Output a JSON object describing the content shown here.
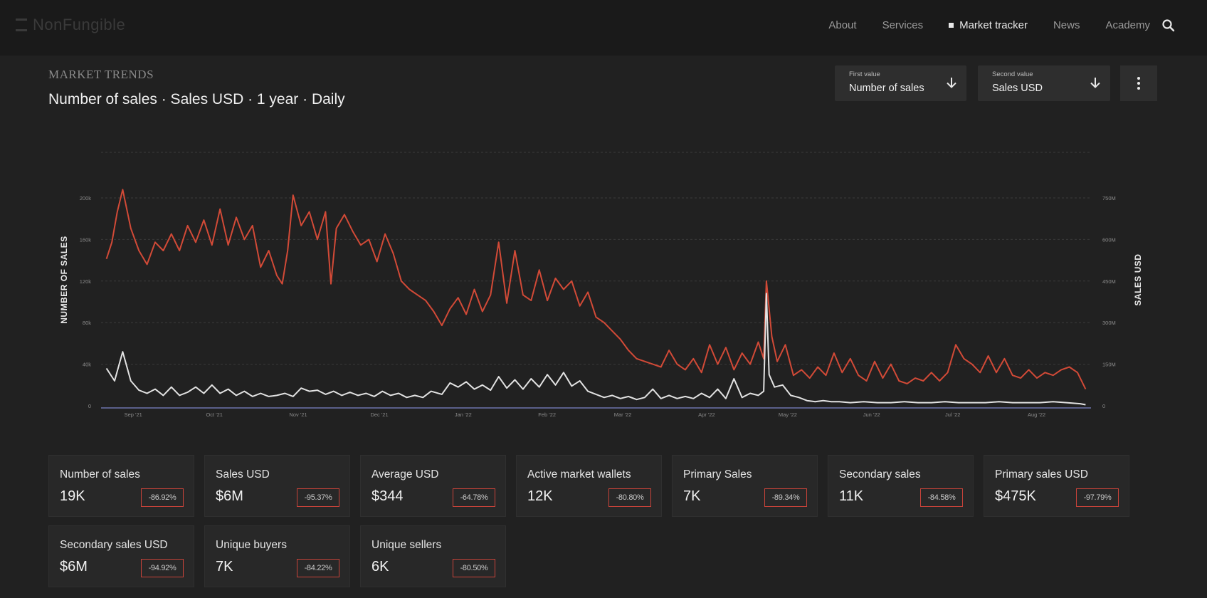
{
  "header": {
    "logo_text": "NonFungible",
    "nav": [
      {
        "label": "About",
        "active": false
      },
      {
        "label": "Services",
        "active": false
      },
      {
        "label": "Market tracker",
        "active": true
      },
      {
        "label": "News",
        "active": false
      },
      {
        "label": "Academy",
        "active": false
      }
    ],
    "search_icon": "search-icon"
  },
  "section_label": "MARKET TRENDS",
  "title": "Number of sales · Sales USD · 1 year · Daily",
  "selectors": {
    "first": {
      "caption": "First value",
      "value": "Number of sales"
    },
    "second": {
      "caption": "Second value",
      "value": "Sales USD"
    },
    "more_icon": "more-vertical-icon"
  },
  "colors": {
    "sales_usd_line": "#d24a37",
    "number_of_sales_line": "#e2e2e2",
    "baseline": "#5a5f8a",
    "change_border": "#c9433a"
  },
  "chart_data": {
    "type": "line",
    "ylabel": "NUMBER OF SALES",
    "y2label": "SALES USD",
    "x_ticks": [
      "Sep '21",
      "Oct '21",
      "Nov '21",
      "Dec '21",
      "Jan '22",
      "Feb '22",
      "Mar '22",
      "Apr '22",
      "May '22",
      "Jun '22",
      "Jul '22",
      "Aug '22"
    ],
    "y_ticks": [
      "0",
      "40k",
      "80k",
      "120k",
      "160k",
      "200k"
    ],
    "y2_ticks": [
      "0",
      "150M",
      "300M",
      "450M",
      "600M",
      "750M"
    ],
    "ylim": [
      0,
      200000
    ],
    "y2lim": [
      0,
      750000000
    ],
    "grid": true,
    "series": [
      {
        "axis": "right",
        "color": "#d24a37",
        "points": [
          [
            "2021-08-30",
            530000000
          ],
          [
            "2021-09-01",
            590000000
          ],
          [
            "2021-09-03",
            700000000
          ],
          [
            "2021-09-05",
            780000000
          ],
          [
            "2021-09-08",
            640000000
          ],
          [
            "2021-09-11",
            560000000
          ],
          [
            "2021-09-14",
            510000000
          ],
          [
            "2021-09-17",
            590000000
          ],
          [
            "2021-09-20",
            560000000
          ],
          [
            "2021-09-23",
            620000000
          ],
          [
            "2021-09-26",
            560000000
          ],
          [
            "2021-09-29",
            650000000
          ],
          [
            "2021-10-02",
            590000000
          ],
          [
            "2021-10-05",
            670000000
          ],
          [
            "2021-10-08",
            580000000
          ],
          [
            "2021-10-11",
            710000000
          ],
          [
            "2021-10-14",
            580000000
          ],
          [
            "2021-10-17",
            680000000
          ],
          [
            "2021-10-20",
            600000000
          ],
          [
            "2021-10-23",
            650000000
          ],
          [
            "2021-10-26",
            500000000
          ],
          [
            "2021-10-29",
            560000000
          ],
          [
            "2021-11-01",
            470000000
          ],
          [
            "2021-11-03",
            440000000
          ],
          [
            "2021-11-05",
            560000000
          ],
          [
            "2021-11-07",
            760000000
          ],
          [
            "2021-11-10",
            650000000
          ],
          [
            "2021-11-13",
            700000000
          ],
          [
            "2021-11-16",
            600000000
          ],
          [
            "2021-11-19",
            700000000
          ],
          [
            "2021-11-21",
            440000000
          ],
          [
            "2021-11-23",
            640000000
          ],
          [
            "2021-11-26",
            690000000
          ],
          [
            "2021-11-29",
            630000000
          ],
          [
            "2021-12-02",
            580000000
          ],
          [
            "2021-12-05",
            600000000
          ],
          [
            "2021-12-08",
            520000000
          ],
          [
            "2021-12-11",
            620000000
          ],
          [
            "2021-12-14",
            550000000
          ],
          [
            "2021-12-17",
            450000000
          ],
          [
            "2021-12-20",
            420000000
          ],
          [
            "2021-12-23",
            400000000
          ],
          [
            "2021-12-26",
            380000000
          ],
          [
            "2021-12-29",
            340000000
          ],
          [
            "2022-01-01",
            290000000
          ],
          [
            "2022-01-04",
            350000000
          ],
          [
            "2022-01-07",
            390000000
          ],
          [
            "2022-01-10",
            330000000
          ],
          [
            "2022-01-13",
            420000000
          ],
          [
            "2022-01-16",
            340000000
          ],
          [
            "2022-01-19",
            400000000
          ],
          [
            "2022-01-22",
            590000000
          ],
          [
            "2022-01-25",
            370000000
          ],
          [
            "2022-01-28",
            560000000
          ],
          [
            "2022-01-31",
            400000000
          ],
          [
            "2022-02-03",
            380000000
          ],
          [
            "2022-02-06",
            490000000
          ],
          [
            "2022-02-09",
            380000000
          ],
          [
            "2022-02-12",
            460000000
          ],
          [
            "2022-02-15",
            420000000
          ],
          [
            "2022-02-18",
            450000000
          ],
          [
            "2022-02-21",
            360000000
          ],
          [
            "2022-02-24",
            410000000
          ],
          [
            "2022-02-27",
            320000000
          ],
          [
            "2022-03-02",
            300000000
          ],
          [
            "2022-03-05",
            270000000
          ],
          [
            "2022-03-08",
            240000000
          ],
          [
            "2022-03-11",
            200000000
          ],
          [
            "2022-03-14",
            170000000
          ],
          [
            "2022-03-17",
            160000000
          ],
          [
            "2022-03-20",
            150000000
          ],
          [
            "2022-03-23",
            140000000
          ],
          [
            "2022-03-26",
            200000000
          ],
          [
            "2022-03-29",
            150000000
          ],
          [
            "2022-04-01",
            130000000
          ],
          [
            "2022-04-04",
            170000000
          ],
          [
            "2022-04-07",
            120000000
          ],
          [
            "2022-04-10",
            220000000
          ],
          [
            "2022-04-13",
            150000000
          ],
          [
            "2022-04-16",
            210000000
          ],
          [
            "2022-04-19",
            130000000
          ],
          [
            "2022-04-22",
            190000000
          ],
          [
            "2022-04-25",
            150000000
          ],
          [
            "2022-04-28",
            230000000
          ],
          [
            "2022-04-30",
            170000000
          ],
          [
            "2022-05-01",
            450000000
          ],
          [
            "2022-05-03",
            250000000
          ],
          [
            "2022-05-05",
            160000000
          ],
          [
            "2022-05-08",
            220000000
          ],
          [
            "2022-05-11",
            110000000
          ],
          [
            "2022-05-14",
            130000000
          ],
          [
            "2022-05-17",
            100000000
          ],
          [
            "2022-05-20",
            140000000
          ],
          [
            "2022-05-23",
            110000000
          ],
          [
            "2022-05-26",
            190000000
          ],
          [
            "2022-05-29",
            120000000
          ],
          [
            "2022-06-01",
            170000000
          ],
          [
            "2022-06-04",
            110000000
          ],
          [
            "2022-06-07",
            90000000
          ],
          [
            "2022-06-10",
            160000000
          ],
          [
            "2022-06-13",
            100000000
          ],
          [
            "2022-06-16",
            150000000
          ],
          [
            "2022-06-19",
            90000000
          ],
          [
            "2022-06-22",
            80000000
          ],
          [
            "2022-06-25",
            100000000
          ],
          [
            "2022-06-28",
            90000000
          ],
          [
            "2022-07-01",
            120000000
          ],
          [
            "2022-07-04",
            90000000
          ],
          [
            "2022-07-07",
            120000000
          ],
          [
            "2022-07-10",
            220000000
          ],
          [
            "2022-07-13",
            170000000
          ],
          [
            "2022-07-16",
            150000000
          ],
          [
            "2022-07-19",
            120000000
          ],
          [
            "2022-07-22",
            180000000
          ],
          [
            "2022-07-25",
            120000000
          ],
          [
            "2022-07-28",
            170000000
          ],
          [
            "2022-07-31",
            110000000
          ],
          [
            "2022-08-03",
            100000000
          ],
          [
            "2022-08-06",
            130000000
          ],
          [
            "2022-08-09",
            100000000
          ],
          [
            "2022-08-12",
            120000000
          ],
          [
            "2022-08-15",
            110000000
          ],
          [
            "2022-08-18",
            130000000
          ],
          [
            "2022-08-21",
            140000000
          ],
          [
            "2022-08-24",
            120000000
          ],
          [
            "2022-08-27",
            60000000
          ]
        ]
      },
      {
        "axis": "left",
        "color": "#e2e2e2",
        "points": [
          [
            "2021-08-30",
            36000
          ],
          [
            "2021-09-02",
            24000
          ],
          [
            "2021-09-05",
            52000
          ],
          [
            "2021-09-08",
            24000
          ],
          [
            "2021-09-11",
            15000
          ],
          [
            "2021-09-14",
            12000
          ],
          [
            "2021-09-17",
            16000
          ],
          [
            "2021-09-20",
            10000
          ],
          [
            "2021-09-23",
            18000
          ],
          [
            "2021-09-26",
            10000
          ],
          [
            "2021-09-29",
            13000
          ],
          [
            "2021-10-02",
            18000
          ],
          [
            "2021-10-05",
            12000
          ],
          [
            "2021-10-08",
            20000
          ],
          [
            "2021-10-11",
            12000
          ],
          [
            "2021-10-14",
            16000
          ],
          [
            "2021-10-17",
            10000
          ],
          [
            "2021-10-20",
            14000
          ],
          [
            "2021-10-23",
            9000
          ],
          [
            "2021-10-26",
            12000
          ],
          [
            "2021-10-29",
            9000
          ],
          [
            "2021-11-01",
            10000
          ],
          [
            "2021-11-04",
            12000
          ],
          [
            "2021-11-07",
            9000
          ],
          [
            "2021-11-10",
            17000
          ],
          [
            "2021-11-13",
            14000
          ],
          [
            "2021-11-16",
            15000
          ],
          [
            "2021-11-19",
            11000
          ],
          [
            "2021-11-22",
            14000
          ],
          [
            "2021-11-25",
            10000
          ],
          [
            "2021-11-28",
            13000
          ],
          [
            "2021-12-01",
            10000
          ],
          [
            "2021-12-04",
            12000
          ],
          [
            "2021-12-07",
            9000
          ],
          [
            "2021-12-10",
            14000
          ],
          [
            "2021-12-13",
            10000
          ],
          [
            "2021-12-16",
            12000
          ],
          [
            "2021-12-19",
            8000
          ],
          [
            "2021-12-22",
            10000
          ],
          [
            "2021-12-25",
            8000
          ],
          [
            "2021-12-28",
            14000
          ],
          [
            "2022-01-01",
            11000
          ],
          [
            "2022-01-04",
            22000
          ],
          [
            "2022-01-07",
            18000
          ],
          [
            "2022-01-10",
            23000
          ],
          [
            "2022-01-13",
            16000
          ],
          [
            "2022-01-16",
            20000
          ],
          [
            "2022-01-19",
            15000
          ],
          [
            "2022-01-22",
            28000
          ],
          [
            "2022-01-25",
            17000
          ],
          [
            "2022-01-28",
            25000
          ],
          [
            "2022-01-31",
            16000
          ],
          [
            "2022-02-03",
            26000
          ],
          [
            "2022-02-06",
            18000
          ],
          [
            "2022-02-09",
            30000
          ],
          [
            "2022-02-12",
            20000
          ],
          [
            "2022-02-15",
            32000
          ],
          [
            "2022-02-18",
            19000
          ],
          [
            "2022-02-21",
            24000
          ],
          [
            "2022-02-24",
            14000
          ],
          [
            "2022-02-27",
            11000
          ],
          [
            "2022-03-02",
            8000
          ],
          [
            "2022-03-05",
            10000
          ],
          [
            "2022-03-08",
            7000
          ],
          [
            "2022-03-11",
            9000
          ],
          [
            "2022-03-14",
            6000
          ],
          [
            "2022-03-17",
            8000
          ],
          [
            "2022-03-20",
            16000
          ],
          [
            "2022-03-23",
            7000
          ],
          [
            "2022-03-26",
            10000
          ],
          [
            "2022-03-29",
            7000
          ],
          [
            "2022-04-01",
            9000
          ],
          [
            "2022-04-04",
            7000
          ],
          [
            "2022-04-07",
            12000
          ],
          [
            "2022-04-10",
            8000
          ],
          [
            "2022-04-13",
            16000
          ],
          [
            "2022-04-16",
            7000
          ],
          [
            "2022-04-19",
            26000
          ],
          [
            "2022-04-22",
            8000
          ],
          [
            "2022-04-25",
            12000
          ],
          [
            "2022-04-28",
            10000
          ],
          [
            "2022-04-30",
            14000
          ],
          [
            "2022-05-01",
            108000
          ],
          [
            "2022-05-02",
            30000
          ],
          [
            "2022-05-04",
            18000
          ],
          [
            "2022-05-07",
            20000
          ],
          [
            "2022-05-10",
            10000
          ],
          [
            "2022-05-13",
            8000
          ],
          [
            "2022-05-16",
            5000
          ],
          [
            "2022-05-19",
            4000
          ],
          [
            "2022-05-22",
            5000
          ],
          [
            "2022-05-25",
            4000
          ],
          [
            "2022-05-28",
            4000
          ],
          [
            "2022-06-01",
            3000
          ],
          [
            "2022-06-06",
            4000
          ],
          [
            "2022-06-11",
            3000
          ],
          [
            "2022-06-16",
            3000
          ],
          [
            "2022-06-21",
            4000
          ],
          [
            "2022-06-26",
            3000
          ],
          [
            "2022-07-01",
            3000
          ],
          [
            "2022-07-06",
            4000
          ],
          [
            "2022-07-11",
            3000
          ],
          [
            "2022-07-16",
            3000
          ],
          [
            "2022-07-21",
            3000
          ],
          [
            "2022-07-26",
            4000
          ],
          [
            "2022-07-31",
            3000
          ],
          [
            "2022-08-05",
            3000
          ],
          [
            "2022-08-10",
            3000
          ],
          [
            "2022-08-15",
            4000
          ],
          [
            "2022-08-20",
            3000
          ],
          [
            "2022-08-25",
            2000
          ],
          [
            "2022-08-27",
            1000
          ]
        ]
      }
    ]
  },
  "metrics": [
    {
      "label": "Number of sales",
      "value": "19K",
      "change": "-86.92%"
    },
    {
      "label": "Sales USD",
      "value": "$6M",
      "change": "-95.37%"
    },
    {
      "label": "Average USD",
      "value": "$344",
      "change": "-64.78%"
    },
    {
      "label": "Active market wallets",
      "value": "12K",
      "change": "-80.80%"
    },
    {
      "label": "Primary Sales",
      "value": "7K",
      "change": "-89.34%"
    },
    {
      "label": "Secondary sales",
      "value": "11K",
      "change": "-84.58%"
    },
    {
      "label": "Primary sales USD",
      "value": "$475K",
      "change": "-97.79%"
    },
    {
      "label": "Secondary sales USD",
      "value": "$6M",
      "change": "-94.92%"
    },
    {
      "label": "Unique buyers",
      "value": "7K",
      "change": "-84.22%"
    },
    {
      "label": "Unique sellers",
      "value": "6K",
      "change": "-80.50%"
    }
  ]
}
